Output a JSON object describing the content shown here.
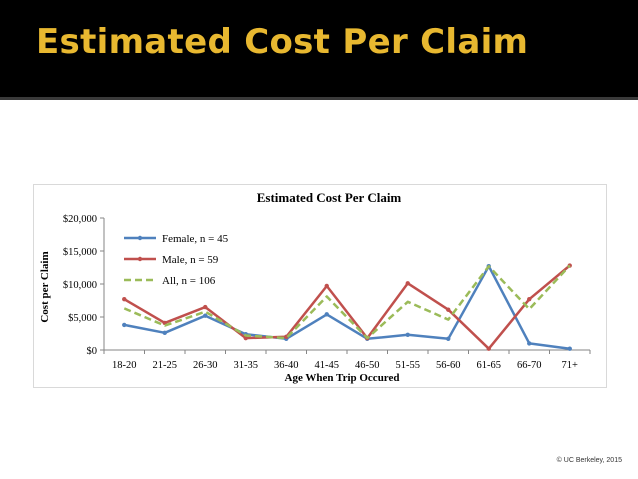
{
  "slide": {
    "title": "Estimated Cost Per Claim",
    "footer": "© UC Berkeley, 2015",
    "title_color": "#e8b830",
    "background": "#000000"
  },
  "chart_data": {
    "type": "line",
    "title": "Estimated Cost Per Claim",
    "xlabel": "Age When Trip Occured",
    "ylabel": "Cost per Claim",
    "categories": [
      "18-20",
      "21-25",
      "26-30",
      "31-35",
      "36-40",
      "41-45",
      "46-50",
      "51-55",
      "56-60",
      "61-65",
      "66-70",
      "71+"
    ],
    "ylim": [
      0,
      20000
    ],
    "yticks": [
      0,
      5000,
      10000,
      15000,
      20000
    ],
    "ytick_labels": [
      "$0",
      "$5,000",
      "$10,000",
      "$15,000",
      "$20,000"
    ],
    "grid": false,
    "legend_position": "top-left",
    "series": [
      {
        "name": "Female, n = 45",
        "color": "#4f81bd",
        "style": "solid",
        "marker": "dot",
        "values": [
          3800,
          2600,
          5200,
          2400,
          1700,
          5400,
          1700,
          2300,
          1700,
          12700,
          1000,
          200
        ]
      },
      {
        "name": "Male, n = 59",
        "color": "#c0504d",
        "style": "solid",
        "marker": "dot",
        "values": [
          7700,
          4100,
          6500,
          1800,
          2000,
          9700,
          1800,
          10100,
          6100,
          200,
          7700,
          12800
        ]
      },
      {
        "name": "All, n = 106",
        "color": "#9bbb59",
        "style": "dashed",
        "marker": "none",
        "values": [
          6300,
          3700,
          5800,
          2200,
          1800,
          8100,
          1800,
          7300,
          4600,
          12700,
          6200,
          12800
        ]
      }
    ]
  }
}
